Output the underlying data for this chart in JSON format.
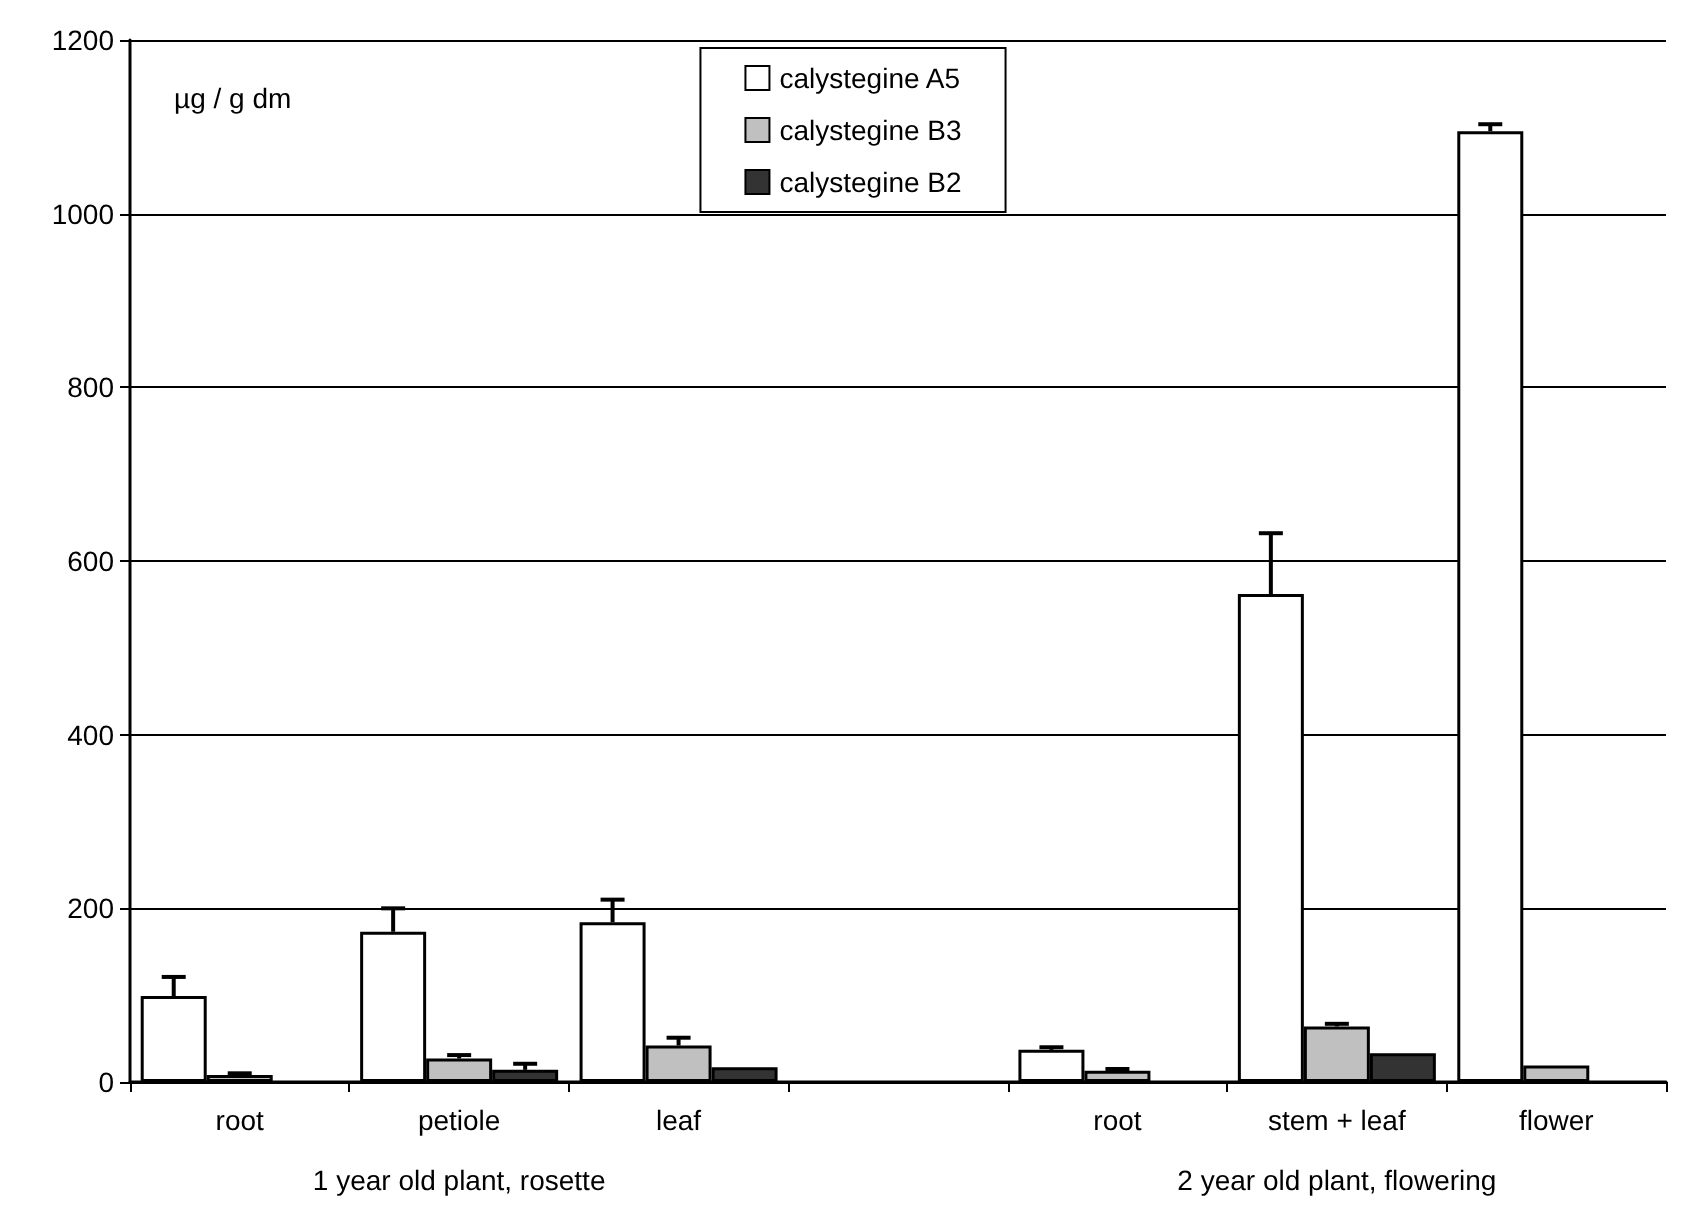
{
  "chart_data": {
    "type": "bar",
    "categories": [
      "root",
      "petiole",
      "leaf",
      null,
      "root",
      "stem + leaf",
      "flower"
    ],
    "series": [
      {
        "name": "calystegine A5",
        "color": "#ffffff",
        "values": [
          99,
          173,
          184,
          null,
          37,
          562,
          1095
        ],
        "errors": [
          [
            99,
            121
          ],
          [
            173,
            200
          ],
          [
            184,
            210
          ],
          null,
          [
            37,
            40
          ],
          [
            562,
            632
          ],
          [
            1095,
            1103
          ]
        ]
      },
      {
        "name": "calystegine B3",
        "color": "#c0c0c0",
        "values": [
          8,
          27,
          42,
          null,
          13,
          64,
          19
        ],
        "errors": [
          [
            8,
            10
          ],
          [
            27,
            31
          ],
          [
            42,
            51
          ],
          null,
          [
            13,
            15
          ],
          [
            64,
            67
          ],
          null
        ]
      },
      {
        "name": "calystegine B2",
        "color": "#333333",
        "values": [
          null,
          14,
          17,
          null,
          null,
          33,
          null
        ],
        "errors": [
          null,
          [
            14,
            21
          ],
          null,
          null,
          null,
          null,
          null
        ]
      }
    ],
    "ylim": [
      0,
      1200
    ],
    "yticks": [
      0,
      200,
      400,
      600,
      800,
      1000,
      1200
    ],
    "grid": "y",
    "legend": "top",
    "annotations": [
      "µg / g dm",
      "1 year old plant, rosette",
      "2 year old plant, flowering"
    ]
  }
}
